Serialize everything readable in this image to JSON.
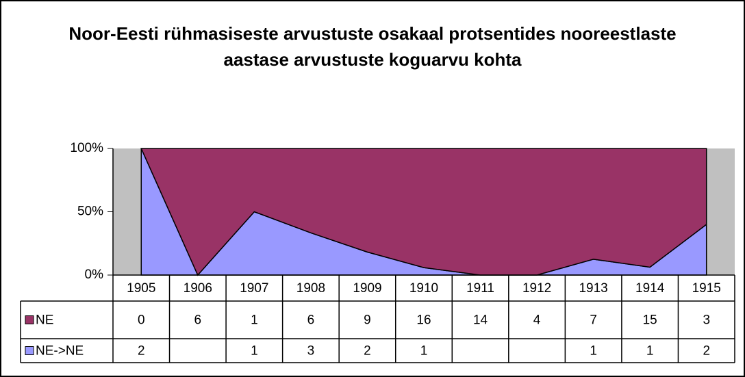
{
  "chart_data": {
    "type": "area100",
    "title": "Noor-Eesti rühmasiseste arvustuste osakaal protsentides nooreestlaste aastase arvustuste koguarvu kohta",
    "categories": [
      "1905",
      "1906",
      "1907",
      "1908",
      "1909",
      "1910",
      "1911",
      "1912",
      "1913",
      "1914",
      "1915"
    ],
    "series": [
      {
        "name": "NE",
        "color": "#993366",
        "values": [
          0,
          6,
          1,
          6,
          9,
          16,
          14,
          4,
          7,
          15,
          3
        ]
      },
      {
        "name": "NE->NE",
        "color": "#9999ff",
        "values": [
          2,
          null,
          1,
          3,
          2,
          1,
          null,
          null,
          1,
          1,
          2
        ]
      }
    ],
    "ylim": [
      0,
      100
    ],
    "yticks": [
      {
        "value": 0,
        "label": "0%"
      },
      {
        "value": 50,
        "label": "50%"
      },
      {
        "value": 100,
        "label": "100%"
      }
    ],
    "plot_background": "#c0c0c0"
  }
}
